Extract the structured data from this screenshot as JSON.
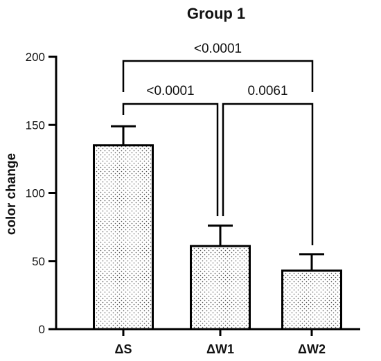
{
  "chart_data": {
    "type": "bar",
    "title": "Group 1",
    "xlabel": "",
    "ylabel": "color change",
    "categories": [
      "ΔS",
      "ΔW1",
      "ΔW2"
    ],
    "values": [
      135,
      61,
      43
    ],
    "errors": [
      14,
      15,
      12
    ],
    "ylim": [
      0,
      200
    ],
    "yticks": [
      0,
      50,
      100,
      150,
      200
    ],
    "ytick_labels": [
      "0",
      "50",
      "100",
      "150",
      "200"
    ],
    "bar_fill": "dotted",
    "significance": [
      {
        "from": 0,
        "to": 2,
        "label": "<0.0001"
      },
      {
        "from": 0,
        "to": 1,
        "label": "<0.0001"
      },
      {
        "from": 1,
        "to": 2,
        "label": "0.0061"
      }
    ],
    "colors": {
      "bar_stroke": "#000000",
      "dots": "#555555",
      "background": "#ffffff"
    }
  }
}
